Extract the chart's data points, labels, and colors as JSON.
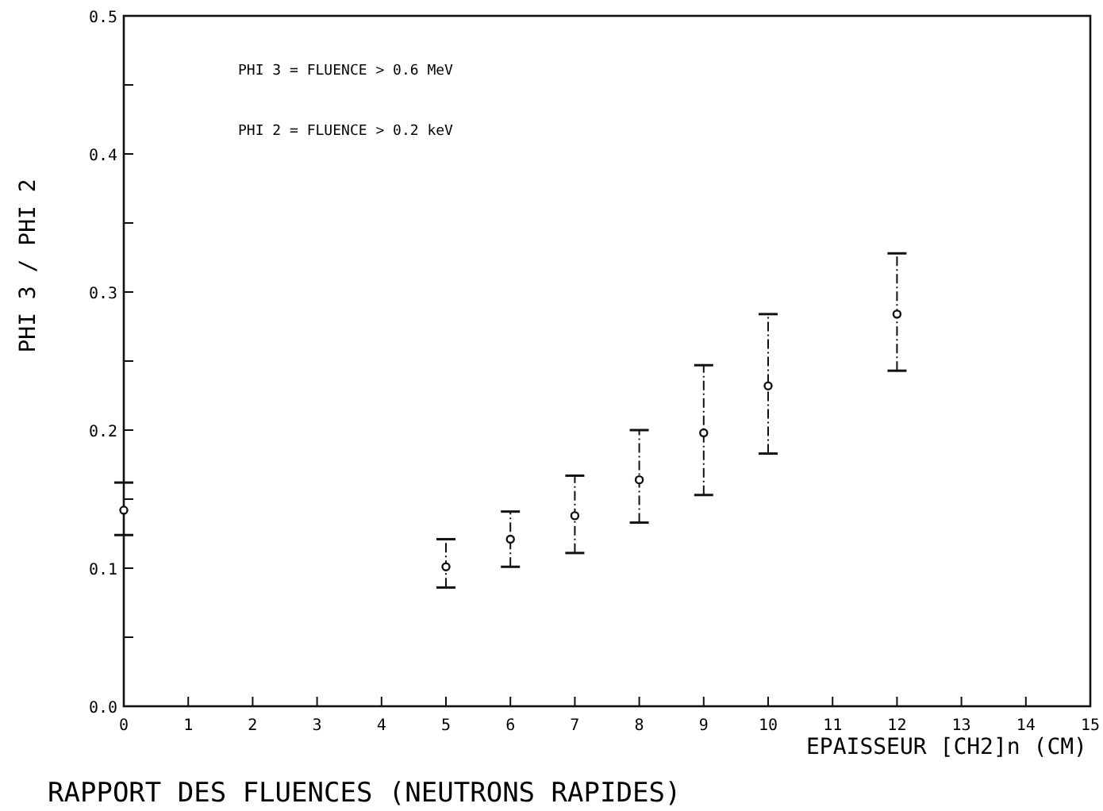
{
  "chart_data": {
    "type": "scatter",
    "title": "RAPPORT DES FLUENCES (NEUTRONS RAPIDES)",
    "xlabel": "EPAISSEUR [CH2]n (CM)",
    "ylabel": "PHI 3 / PHI 2",
    "annotations": [
      "PHI 3 = FLUENCE > 0.6 MeV",
      "PHI 2 = FLUENCE > 0.2 keV"
    ],
    "x": [
      0,
      5,
      6,
      7,
      8,
      9,
      10,
      12
    ],
    "values": [
      0.142,
      0.101,
      0.121,
      0.138,
      0.164,
      0.198,
      0.232,
      0.284
    ],
    "errors": [
      [
        0.124,
        0.162
      ],
      [
        0.086,
        0.121
      ],
      [
        0.101,
        0.141
      ],
      [
        0.111,
        0.167
      ],
      [
        0.133,
        0.2
      ],
      [
        0.153,
        0.247
      ],
      [
        0.183,
        0.284
      ],
      [
        0.243,
        0.328
      ]
    ],
    "color": "#111111",
    "marker": "circle",
    "grid": false,
    "xlim": [
      0,
      15
    ],
    "xticks": [
      0,
      1,
      2,
      3,
      4,
      5,
      6,
      7,
      8,
      9,
      10,
      11,
      12,
      13,
      14,
      15
    ],
    "ylim": [
      0,
      0.5
    ],
    "yticks": [
      {
        "value": 0,
        "label": "0.0"
      },
      {
        "value": 0.05,
        "label": null
      },
      {
        "value": 0.1,
        "label": "0.1"
      },
      {
        "value": 0.15,
        "label": null
      },
      {
        "value": 0.2,
        "label": "0.2"
      },
      {
        "value": 0.25,
        "label": null
      },
      {
        "value": 0.3,
        "label": "0.3"
      },
      {
        "value": 0.35,
        "label": null
      },
      {
        "value": 0.4,
        "label": "0.4"
      },
      {
        "value": 0.45,
        "label": null
      },
      {
        "value": 0.5,
        "label": "0.5"
      }
    ]
  }
}
